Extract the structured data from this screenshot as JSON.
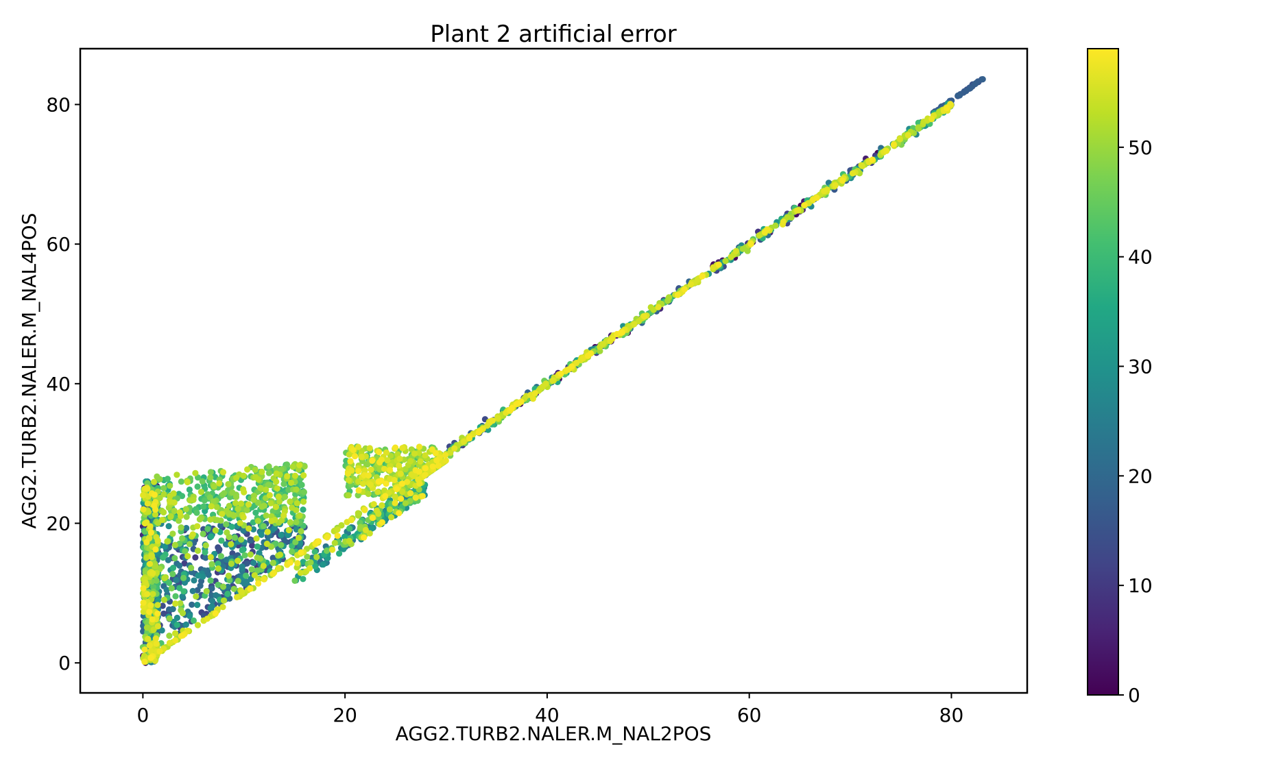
{
  "chart_data": {
    "type": "scatter",
    "title": "Plant 2 artificial error",
    "xlabel": "AGG2.TURB2.NALER.M_NAL2POS",
    "ylabel": "AGG2.TURB2.NALER.M_NAL4POS",
    "xlim": [
      -6.2,
      87.5
    ],
    "ylim": [
      -4.3,
      88
    ],
    "xticks": [
      0,
      20,
      40,
      60,
      80
    ],
    "yticks": [
      0,
      20,
      40,
      60,
      80
    ],
    "grid": false,
    "colormap": "viridis",
    "colorbar": {
      "vmin": 0,
      "vmax": 59,
      "ticks": [
        0,
        10,
        20,
        30,
        40,
        50
      ]
    },
    "series": [
      {
        "clusters": [
          {
            "x": [
              0,
              80
            ],
            "y": [
              0,
              80
            ],
            "c": [
              50,
              59
            ],
            "kind": "identity-band",
            "n": 400
          },
          {
            "x": [
              78,
              83.3
            ],
            "y": [
              78,
              84
            ],
            "c": [
              14,
              18
            ],
            "kind": "identity-tail",
            "n": 40
          },
          {
            "x": [
              0,
              1.5
            ],
            "y": [
              0,
              26
            ],
            "c": [
              0,
              59
            ],
            "kind": "vertical-column",
            "n": 520
          },
          {
            "x": [
              1,
              16
            ],
            "y": [
              1,
              28
            ],
            "c": [
              10,
              50
            ],
            "kind": "upper-triangle",
            "n": 900
          },
          {
            "x": [
              20,
              30
            ],
            "y": [
              20,
              31
            ],
            "c": [
              40,
              59
            ],
            "kind": "dense-cluster",
            "n": 350
          },
          {
            "x": [
              15,
              28
            ],
            "y": [
              12,
              26
            ],
            "c": [
              20,
              59
            ],
            "kind": "below-diagonal",
            "n": 220
          },
          {
            "x": [
              30,
              80
            ],
            "y": [
              30,
              80
            ],
            "c": [
              0,
              59
            ],
            "kind": "diagonal-scatter",
            "n": 420
          }
        ]
      }
    ]
  }
}
